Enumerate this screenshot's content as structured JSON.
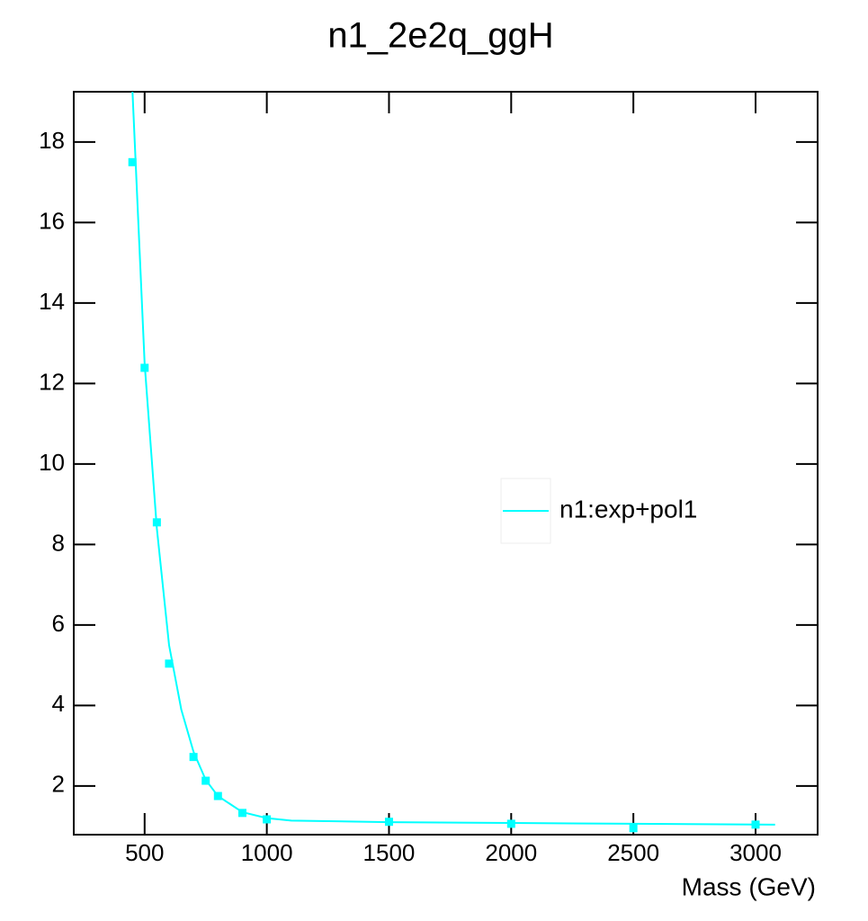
{
  "chart_data": {
    "type": "scatter",
    "title": "n1_2e2q_ggH",
    "x_label": "Mass (GeV)",
    "xlim": [
      210,
      3254
    ],
    "ylim": [
      0.79,
      19.25
    ],
    "xticks": [
      500,
      1000,
      1500,
      2000,
      2500,
      3000
    ],
    "yticks": [
      2,
      4,
      6,
      8,
      10,
      12,
      14,
      16,
      18
    ],
    "markers": {
      "color": "#00ffff",
      "x": [
        450,
        500,
        550,
        600,
        700,
        750,
        800,
        900,
        1000,
        1500,
        2000,
        2500,
        3000
      ],
      "values": [
        17.5,
        12.39,
        8.55,
        5.04,
        2.72,
        2.13,
        1.75,
        1.33,
        1.17,
        1.11,
        1.06,
        0.95,
        1.04
      ]
    },
    "fit": {
      "name": "n1:exp+pol1",
      "color": "#00ffff",
      "x": [
        450,
        500,
        550,
        600,
        650,
        700,
        750,
        800,
        900,
        1000,
        1100,
        1500,
        2000,
        2500,
        3080
      ],
      "values": [
        19.3,
        12.5,
        8.4,
        5.5,
        3.9,
        2.85,
        2.15,
        1.75,
        1.35,
        1.2,
        1.14,
        1.1,
        1.08,
        1.06,
        1.04
      ]
    },
    "legend": "center-right"
  }
}
